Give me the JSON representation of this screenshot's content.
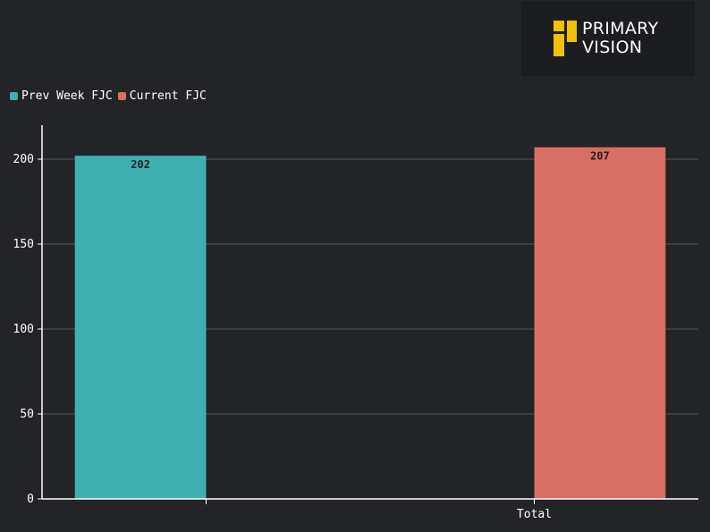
{
  "logo": {
    "line1": "PRIMARY",
    "line2": "VISION",
    "mark_color": "#f2c200"
  },
  "colors": {
    "background": "#232428",
    "axis": "#ffffff",
    "grid": "#55565b"
  },
  "chart_data": {
    "type": "bar",
    "categories": [
      "",
      "Total"
    ],
    "series": [
      {
        "name": "Prev Week FJC",
        "color": "#3fb0b0",
        "values": [
          202,
          null
        ]
      },
      {
        "name": "Current FJC",
        "color": "#d96e63",
        "values": [
          null,
          207
        ]
      }
    ],
    "ylim": [
      0,
      220
    ],
    "yticks": [
      0,
      50,
      100,
      150,
      200
    ],
    "grid": true,
    "legend": "top-left",
    "xlabel": "",
    "ylabel": "",
    "title": ""
  }
}
